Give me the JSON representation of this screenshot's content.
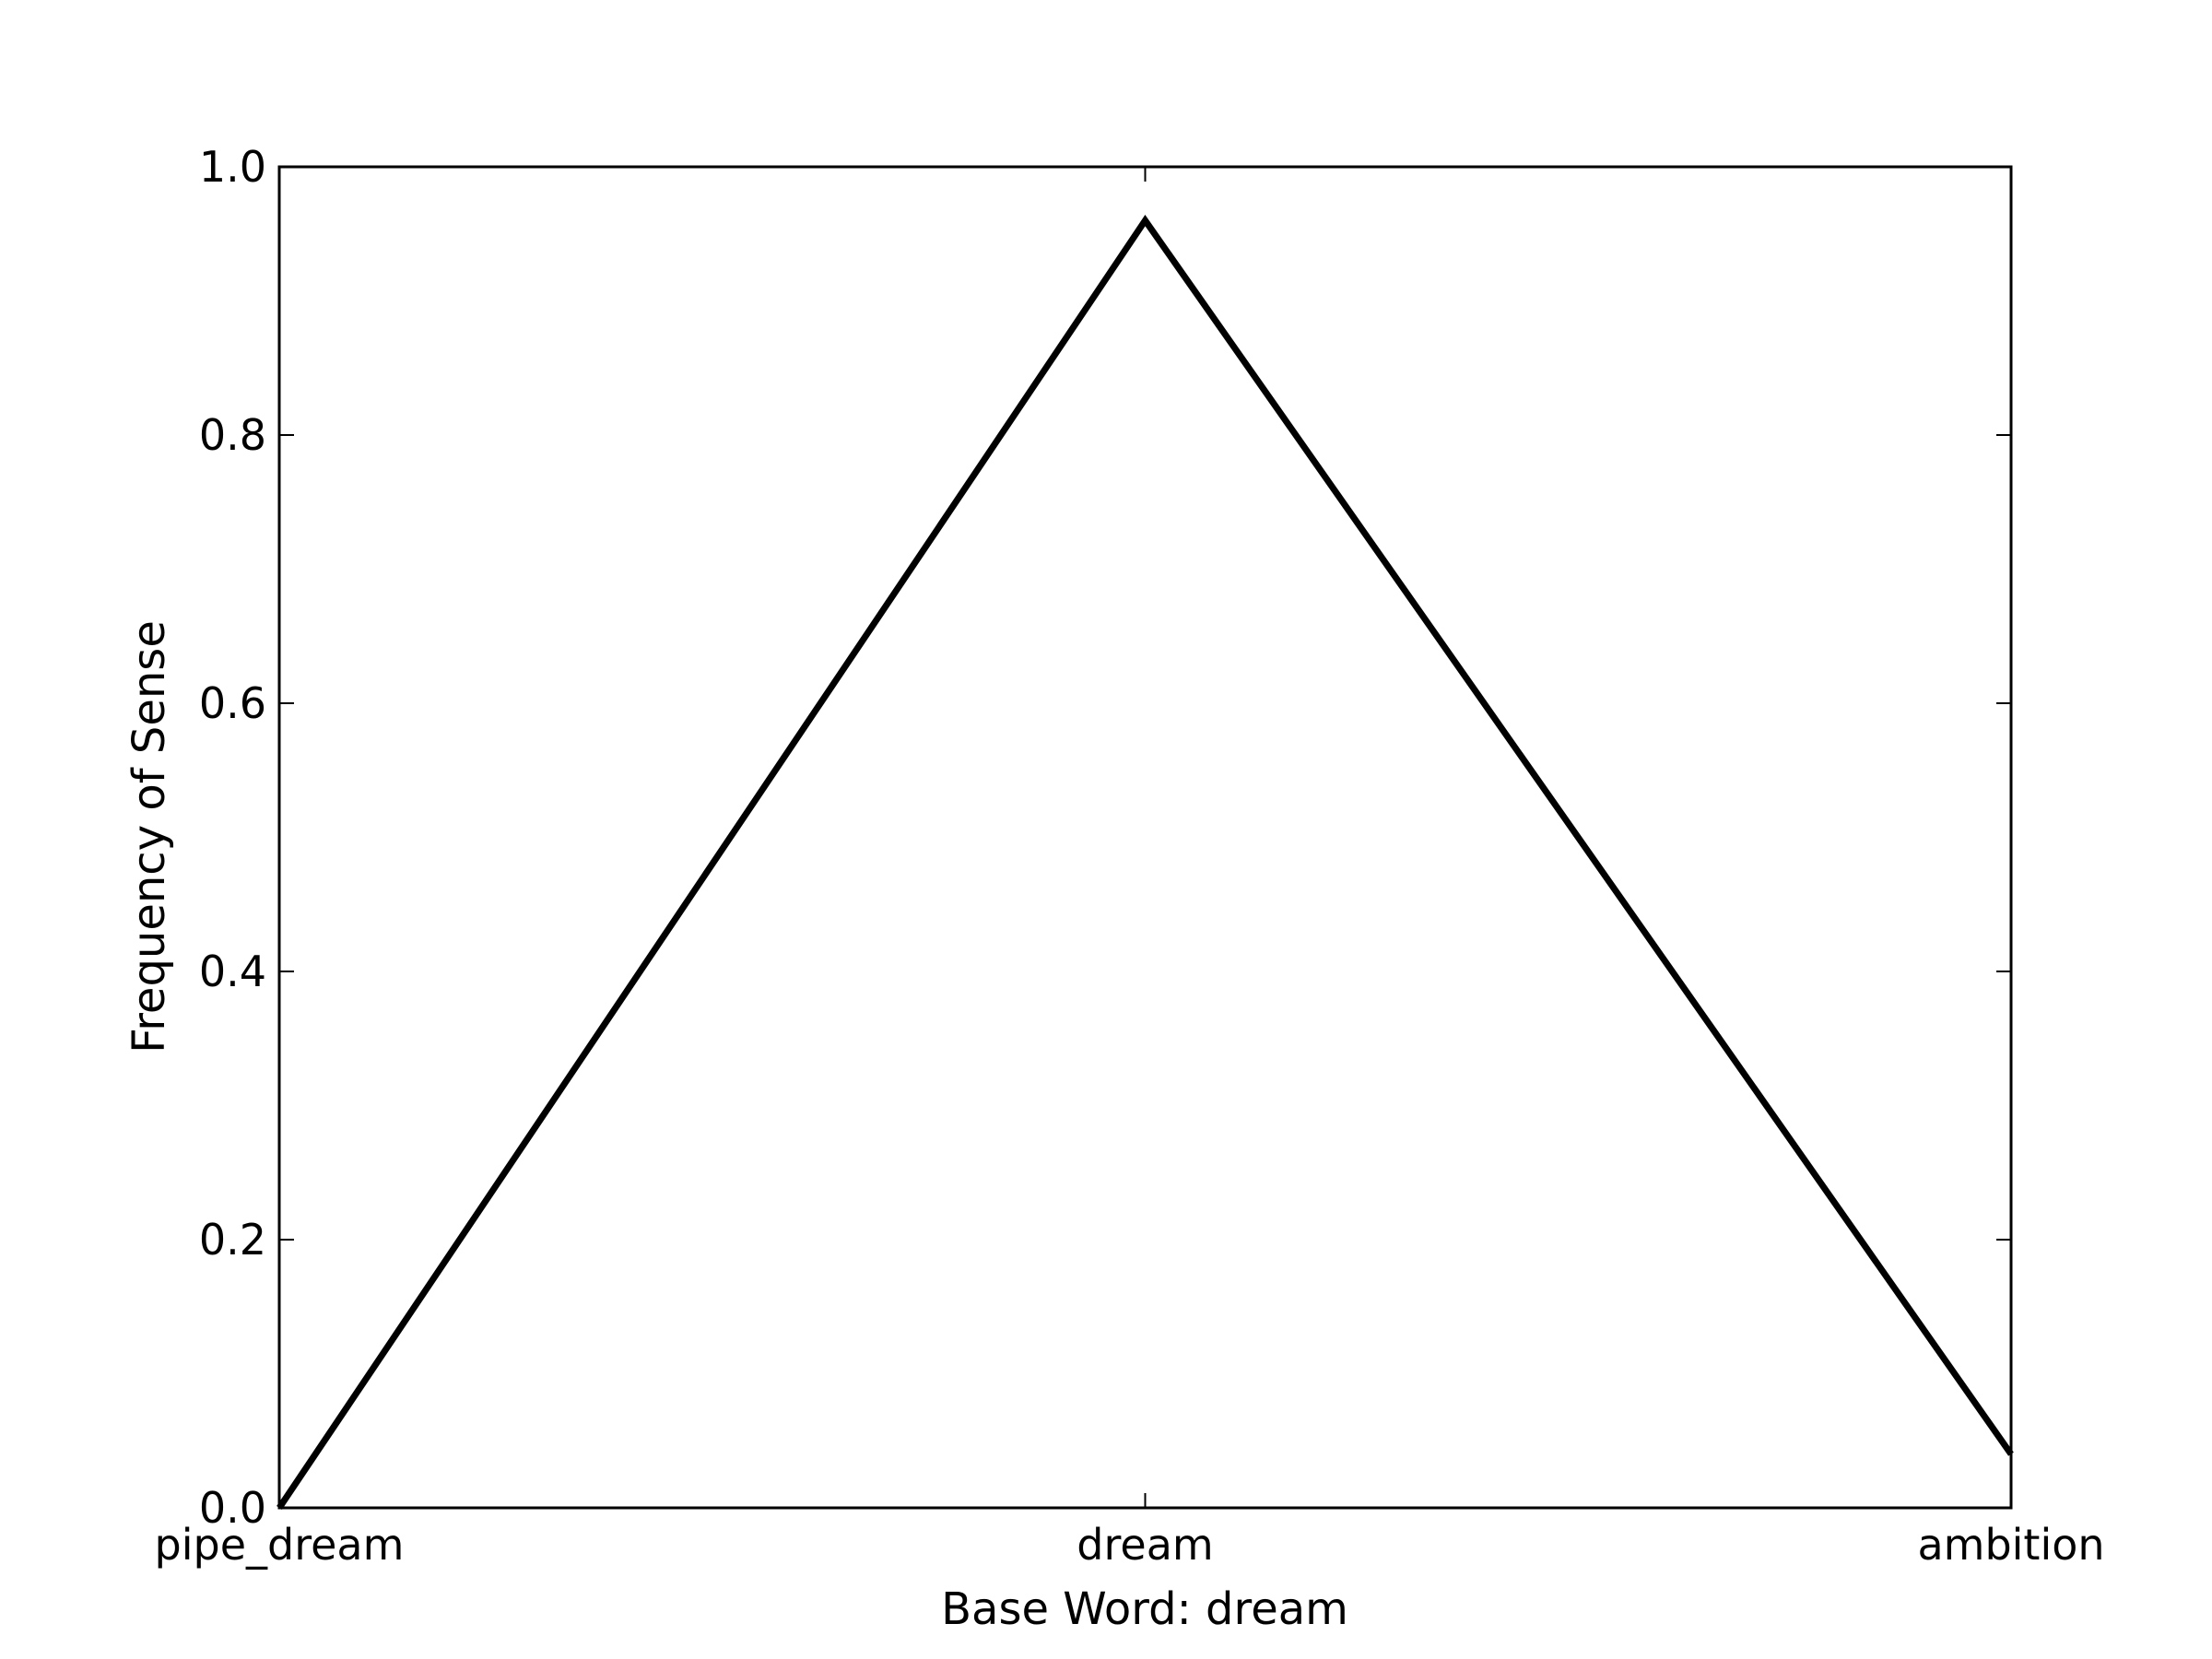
{
  "chart_data": {
    "type": "line",
    "title": "",
    "xlabel": "Base Word: dream",
    "ylabel": "Frequency of Sense",
    "categories": [
      "pipe_dream",
      "dream",
      "ambition"
    ],
    "series": [
      {
        "values": [
          0.0,
          0.96,
          0.04
        ]
      }
    ],
    "ylim": [
      0.0,
      1.0
    ],
    "yticks": [
      "0.0",
      "0.2",
      "0.4",
      "0.6",
      "0.8",
      "1.0"
    ],
    "grid": false,
    "line_color": "#000000"
  }
}
